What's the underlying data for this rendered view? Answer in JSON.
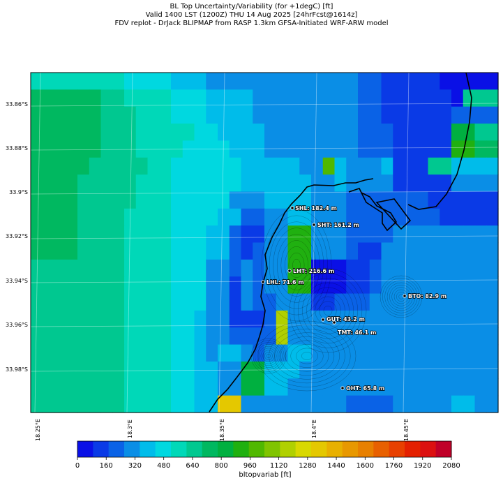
{
  "header": {
    "line1": "BL Top Uncertainty/Variability (for +1degC) [ft]",
    "line2": "Valid 1400 LST (1200Z) THU 14 Aug 2025 [24hrFcst@1614z]",
    "line3": "FDV replot - DrJack BLIPMAP from RASP 1.3km GFSA-Initiated WRF-ARW model"
  },
  "lat_labels": [
    "33.86°S",
    "33.88°S",
    "33.9°S",
    "33.92°S",
    "33.94°S",
    "33.96°S",
    "33.98°S"
  ],
  "lon_labels": [
    "18.25°E",
    "18.3°E",
    "18.35°E",
    "18.4°E",
    "18.45°E"
  ],
  "stations": [
    {
      "label": "SHL: 182.4 m"
    },
    {
      "label": "SHT: 161.2 m"
    },
    {
      "label": "LHT: 216.6 m"
    },
    {
      "label": "LHL: 71.6 m"
    },
    {
      "label": "BTO: 82.9 m"
    },
    {
      "label": "GUT: 43.2 m"
    },
    {
      "label": "TMT: 46.1 m"
    },
    {
      "label": "OHT: 65.8 m"
    }
  ],
  "colorbar": {
    "title": "bltopvariab [ft]",
    "ticks": [
      "0",
      "160",
      "320",
      "480",
      "640",
      "800",
      "960",
      "1120",
      "1280",
      "1440",
      "1600",
      "1760",
      "1920",
      "2080"
    ],
    "colors": [
      "#0a10e6",
      "#0a3ae6",
      "#0a62e6",
      "#0a8ee6",
      "#00bcea",
      "#00d8e0",
      "#00d8b8",
      "#00c890",
      "#00b860",
      "#00b040",
      "#20b010",
      "#50b800",
      "#80c400",
      "#b0d000",
      "#d8d800",
      "#e4c800",
      "#e8b000",
      "#e89800",
      "#e88000",
      "#e86000",
      "#e84000",
      "#e42000",
      "#dc1010",
      "#c00028"
    ]
  },
  "grid": {
    "rows": [
      [
        6,
        6,
        6,
        6,
        6,
        6,
        6,
        6,
        5,
        5,
        5,
        5,
        4,
        4,
        4,
        3,
        3,
        3,
        3,
        3,
        3,
        3,
        3,
        3,
        3,
        3,
        3,
        3,
        2,
        2,
        1,
        1,
        1,
        1,
        1,
        0,
        0,
        0,
        0,
        0
      ],
      [
        8,
        8,
        8,
        8,
        8,
        8,
        7,
        7,
        6,
        6,
        6,
        6,
        5,
        5,
        5,
        4,
        4,
        4,
        4,
        3,
        3,
        3,
        3,
        3,
        3,
        3,
        3,
        3,
        2,
        2,
        1,
        1,
        1,
        1,
        1,
        1,
        0,
        7,
        7,
        7
      ],
      [
        8,
        8,
        8,
        8,
        8,
        8,
        7,
        7,
        7,
        6,
        6,
        6,
        5,
        5,
        5,
        4,
        4,
        4,
        4,
        3,
        3,
        3,
        3,
        3,
        3,
        3,
        3,
        3,
        2,
        2,
        1,
        1,
        1,
        1,
        1,
        1,
        2,
        2,
        2,
        2
      ],
      [
        8,
        8,
        8,
        8,
        8,
        8,
        7,
        7,
        7,
        6,
        6,
        6,
        6,
        6,
        5,
        5,
        4,
        4,
        4,
        4,
        3,
        3,
        3,
        3,
        3,
        3,
        3,
        3,
        2,
        2,
        2,
        1,
        1,
        1,
        1,
        1,
        9,
        9,
        7,
        7
      ],
      [
        8,
        8,
        8,
        8,
        8,
        8,
        7,
        7,
        7,
        6,
        6,
        6,
        6,
        5,
        5,
        5,
        5,
        4,
        4,
        4,
        3,
        3,
        3,
        3,
        3,
        3,
        3,
        3,
        2,
        2,
        2,
        1,
        1,
        1,
        1,
        1,
        10,
        10,
        8,
        8
      ],
      [
        8,
        8,
        8,
        8,
        8,
        7,
        7,
        7,
        7,
        7,
        6,
        6,
        5,
        5,
        5,
        5,
        5,
        5,
        4,
        4,
        4,
        4,
        4,
        3,
        3,
        11,
        4,
        3,
        3,
        3,
        4,
        1,
        1,
        1,
        7,
        7,
        4,
        4,
        4,
        4
      ],
      [
        8,
        8,
        8,
        8,
        7,
        7,
        7,
        7,
        7,
        6,
        6,
        6,
        5,
        5,
        5,
        5,
        5,
        5,
        4,
        4,
        4,
        4,
        4,
        4,
        3,
        3,
        4,
        3,
        3,
        3,
        3,
        1,
        1,
        1,
        1,
        1,
        3,
        3,
        3,
        3
      ],
      [
        8,
        8,
        8,
        8,
        7,
        7,
        7,
        7,
        7,
        6,
        6,
        6,
        5,
        5,
        5,
        5,
        5,
        3,
        3,
        3,
        4,
        4,
        4,
        4,
        3,
        3,
        3,
        2,
        2,
        2,
        2,
        2,
        2,
        2,
        1,
        1,
        1,
        1,
        1,
        1
      ],
      [
        8,
        8,
        8,
        8,
        7,
        7,
        7,
        7,
        6,
        6,
        6,
        6,
        5,
        5,
        5,
        5,
        4,
        4,
        2,
        2,
        3,
        3,
        4,
        4,
        3,
        3,
        3,
        2,
        2,
        2,
        2,
        2,
        2,
        2,
        2,
        1,
        1,
        1,
        1,
        1
      ],
      [
        8,
        8,
        8,
        8,
        7,
        7,
        7,
        7,
        6,
        6,
        6,
        6,
        5,
        5,
        5,
        4,
        4,
        2,
        1,
        1,
        3,
        3,
        10,
        10,
        3,
        3,
        3,
        2,
        2,
        2,
        2,
        3,
        3,
        3,
        3,
        3,
        3,
        3,
        3,
        3
      ],
      [
        8,
        8,
        8,
        8,
        7,
        7,
        7,
        7,
        6,
        6,
        6,
        6,
        5,
        5,
        5,
        4,
        4,
        2,
        1,
        2,
        3,
        3,
        10,
        10,
        3,
        3,
        3,
        2,
        1,
        1,
        3,
        3,
        3,
        3,
        3,
        3,
        3,
        3,
        3,
        3
      ],
      [
        7,
        7,
        7,
        7,
        7,
        7,
        7,
        7,
        6,
        6,
        6,
        6,
        5,
        5,
        5,
        3,
        3,
        2,
        3,
        2,
        3,
        3,
        10,
        10,
        0,
        0,
        0,
        1,
        1,
        2,
        3,
        3,
        3,
        3,
        3,
        3,
        3,
        3,
        3,
        3
      ],
      [
        7,
        7,
        7,
        7,
        7,
        7,
        7,
        7,
        6,
        6,
        6,
        6,
        5,
        5,
        5,
        3,
        3,
        1,
        3,
        2,
        3,
        3,
        10,
        10,
        0,
        0,
        0,
        1,
        1,
        2,
        3,
        3,
        3,
        3,
        3,
        3,
        3,
        3,
        3,
        3
      ],
      [
        7,
        7,
        7,
        7,
        7,
        7,
        7,
        7,
        6,
        6,
        6,
        6,
        5,
        5,
        5,
        3,
        3,
        1,
        3,
        2,
        2,
        3,
        3,
        3,
        1,
        1,
        2,
        2,
        2,
        3,
        3,
        3,
        3,
        3,
        3,
        3,
        3,
        3,
        3,
        3
      ],
      [
        7,
        7,
        7,
        7,
        7,
        7,
        7,
        7,
        6,
        6,
        6,
        6,
        5,
        5,
        4,
        3,
        3,
        1,
        1,
        1,
        2,
        13,
        3,
        3,
        3,
        3,
        3,
        3,
        3,
        3,
        3,
        3,
        3,
        3,
        3,
        3,
        3,
        3,
        3,
        3
      ],
      [
        7,
        7,
        7,
        7,
        7,
        7,
        7,
        7,
        6,
        6,
        6,
        6,
        5,
        5,
        4,
        3,
        3,
        2,
        2,
        2,
        2,
        13,
        3,
        3,
        3,
        3,
        3,
        3,
        3,
        3,
        3,
        3,
        3,
        3,
        3,
        3,
        3,
        3,
        3,
        3
      ],
      [
        7,
        7,
        7,
        7,
        7,
        7,
        7,
        7,
        6,
        6,
        6,
        6,
        5,
        5,
        4,
        3,
        4,
        4,
        3,
        2,
        3,
        3,
        4,
        4,
        3,
        3,
        3,
        3,
        3,
        3,
        3,
        3,
        3,
        3,
        3,
        3,
        3,
        3,
        3,
        3
      ],
      [
        7,
        7,
        7,
        7,
        7,
        7,
        7,
        7,
        6,
        6,
        6,
        6,
        5,
        5,
        4,
        4,
        3,
        3,
        9,
        9,
        4,
        4,
        4,
        3,
        3,
        3,
        3,
        3,
        3,
        3,
        3,
        3,
        3,
        3,
        3,
        3,
        3,
        3,
        3,
        3
      ],
      [
        7,
        7,
        7,
        7,
        7,
        7,
        7,
        7,
        6,
        6,
        6,
        6,
        5,
        5,
        4,
        4,
        3,
        3,
        9,
        9,
        4,
        4,
        3,
        3,
        3,
        3,
        3,
        3,
        3,
        3,
        3,
        3,
        3,
        3,
        3,
        3,
        3,
        3,
        3,
        3
      ],
      [
        7,
        7,
        7,
        7,
        7,
        7,
        7,
        7,
        6,
        6,
        6,
        6,
        5,
        5,
        4,
        4,
        15,
        15,
        3,
        3,
        3,
        3,
        3,
        3,
        3,
        3,
        3,
        2,
        2,
        2,
        2,
        3,
        3,
        3,
        3,
        3,
        4,
        4,
        3,
        3
      ]
    ]
  }
}
